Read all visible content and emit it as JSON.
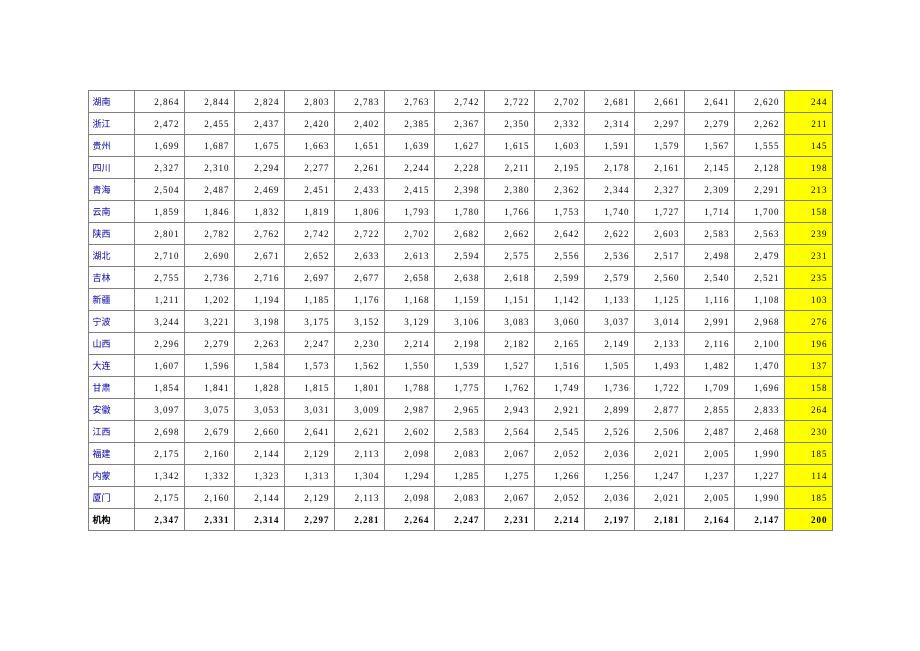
{
  "table": {
    "type": "table",
    "label_color": "#0000aa",
    "highlight_bg": "#ffff00",
    "border_color": "#808080",
    "font_family": "SimSun",
    "font_size": 9,
    "col_count": 15,
    "rows": [
      {
        "label": "湖南",
        "values": [
          "2,864",
          "2,844",
          "2,824",
          "2,803",
          "2,783",
          "2,763",
          "2,742",
          "2,722",
          "2,702",
          "2,681",
          "2,661",
          "2,641",
          "2,620"
        ],
        "hl": "244",
        "bold": false
      },
      {
        "label": "浙江",
        "values": [
          "2,472",
          "2,455",
          "2,437",
          "2,420",
          "2,402",
          "2,385",
          "2,367",
          "2,350",
          "2,332",
          "2,314",
          "2,297",
          "2,279",
          "2,262"
        ],
        "hl": "211",
        "bold": false
      },
      {
        "label": "贵州",
        "values": [
          "1,699",
          "1,687",
          "1,675",
          "1,663",
          "1,651",
          "1,639",
          "1,627",
          "1,615",
          "1,603",
          "1,591",
          "1,579",
          "1,567",
          "1,555"
        ],
        "hl": "145",
        "bold": false
      },
      {
        "label": "四川",
        "values": [
          "2,327",
          "2,310",
          "2,294",
          "2,277",
          "2,261",
          "2,244",
          "2,228",
          "2,211",
          "2,195",
          "2,178",
          "2,161",
          "2,145",
          "2,128"
        ],
        "hl": "198",
        "bold": false
      },
      {
        "label": "青海",
        "values": [
          "2,504",
          "2,487",
          "2,469",
          "2,451",
          "2,433",
          "2,415",
          "2,398",
          "2,380",
          "2,362",
          "2,344",
          "2,327",
          "2,309",
          "2,291"
        ],
        "hl": "213",
        "bold": false
      },
      {
        "label": "云南",
        "values": [
          "1,859",
          "1,846",
          "1,832",
          "1,819",
          "1,806",
          "1,793",
          "1,780",
          "1,766",
          "1,753",
          "1,740",
          "1,727",
          "1,714",
          "1,700"
        ],
        "hl": "158",
        "bold": false
      },
      {
        "label": "陕西",
        "values": [
          "2,801",
          "2,782",
          "2,762",
          "2,742",
          "2,722",
          "2,702",
          "2,682",
          "2,662",
          "2,642",
          "2,622",
          "2,603",
          "2,583",
          "2,563"
        ],
        "hl": "239",
        "bold": false
      },
      {
        "label": "湖北",
        "values": [
          "2,710",
          "2,690",
          "2,671",
          "2,652",
          "2,633",
          "2,613",
          "2,594",
          "2,575",
          "2,556",
          "2,536",
          "2,517",
          "2,498",
          "2,479"
        ],
        "hl": "231",
        "bold": false
      },
      {
        "label": "吉林",
        "values": [
          "2,755",
          "2,736",
          "2,716",
          "2,697",
          "2,677",
          "2,658",
          "2,638",
          "2,618",
          "2,599",
          "2,579",
          "2,560",
          "2,540",
          "2,521"
        ],
        "hl": "235",
        "bold": false
      },
      {
        "label": "新疆",
        "values": [
          "1,211",
          "1,202",
          "1,194",
          "1,185",
          "1,176",
          "1,168",
          "1,159",
          "1,151",
          "1,142",
          "1,133",
          "1,125",
          "1,116",
          "1,108"
        ],
        "hl": "103",
        "bold": false
      },
      {
        "label": "宁波",
        "values": [
          "3,244",
          "3,221",
          "3,198",
          "3,175",
          "3,152",
          "3,129",
          "3,106",
          "3,083",
          "3,060",
          "3,037",
          "3,014",
          "2,991",
          "2,968"
        ],
        "hl": "276",
        "bold": false
      },
      {
        "label": "山西",
        "values": [
          "2,296",
          "2,279",
          "2,263",
          "2,247",
          "2,230",
          "2,214",
          "2,198",
          "2,182",
          "2,165",
          "2,149",
          "2,133",
          "2,116",
          "2,100"
        ],
        "hl": "196",
        "bold": false
      },
      {
        "label": "大连",
        "values": [
          "1,607",
          "1,596",
          "1,584",
          "1,573",
          "1,562",
          "1,550",
          "1,539",
          "1,527",
          "1,516",
          "1,505",
          "1,493",
          "1,482",
          "1,470"
        ],
        "hl": "137",
        "bold": false
      },
      {
        "label": "甘肃",
        "values": [
          "1,854",
          "1,841",
          "1,828",
          "1,815",
          "1,801",
          "1,788",
          "1,775",
          "1,762",
          "1,749",
          "1,736",
          "1,722",
          "1,709",
          "1,696"
        ],
        "hl": "158",
        "bold": false
      },
      {
        "label": "安徽",
        "values": [
          "3,097",
          "3,075",
          "3,053",
          "3,031",
          "3,009",
          "2,987",
          "2,965",
          "2,943",
          "2,921",
          "2,899",
          "2,877",
          "2,855",
          "2,833"
        ],
        "hl": "264",
        "bold": false
      },
      {
        "label": "江西",
        "values": [
          "2,698",
          "2,679",
          "2,660",
          "2,641",
          "2,621",
          "2,602",
          "2,583",
          "2,564",
          "2,545",
          "2,526",
          "2,506",
          "2,487",
          "2,468"
        ],
        "hl": "230",
        "bold": false
      },
      {
        "label": "福建",
        "values": [
          "2,175",
          "2,160",
          "2,144",
          "2,129",
          "2,113",
          "2,098",
          "2,083",
          "2,067",
          "2,052",
          "2,036",
          "2,021",
          "2,005",
          "1,990"
        ],
        "hl": "185",
        "bold": false
      },
      {
        "label": "内蒙",
        "values": [
          "1,342",
          "1,332",
          "1,323",
          "1,313",
          "1,304",
          "1,294",
          "1,285",
          "1,275",
          "1,266",
          "1,256",
          "1,247",
          "1,237",
          "1,227"
        ],
        "hl": "114",
        "bold": false
      },
      {
        "label": "厦门",
        "values": [
          "2,175",
          "2,160",
          "2,144",
          "2,129",
          "2,113",
          "2,098",
          "2,083",
          "2,067",
          "2,052",
          "2,036",
          "2,021",
          "2,005",
          "1,990"
        ],
        "hl": "185",
        "bold": false
      },
      {
        "label": "机构",
        "values": [
          "2,347",
          "2,331",
          "2,314",
          "2,297",
          "2,281",
          "2,264",
          "2,247",
          "2,231",
          "2,214",
          "2,197",
          "2,181",
          "2,164",
          "2,147"
        ],
        "hl": "200",
        "bold": true
      }
    ]
  }
}
